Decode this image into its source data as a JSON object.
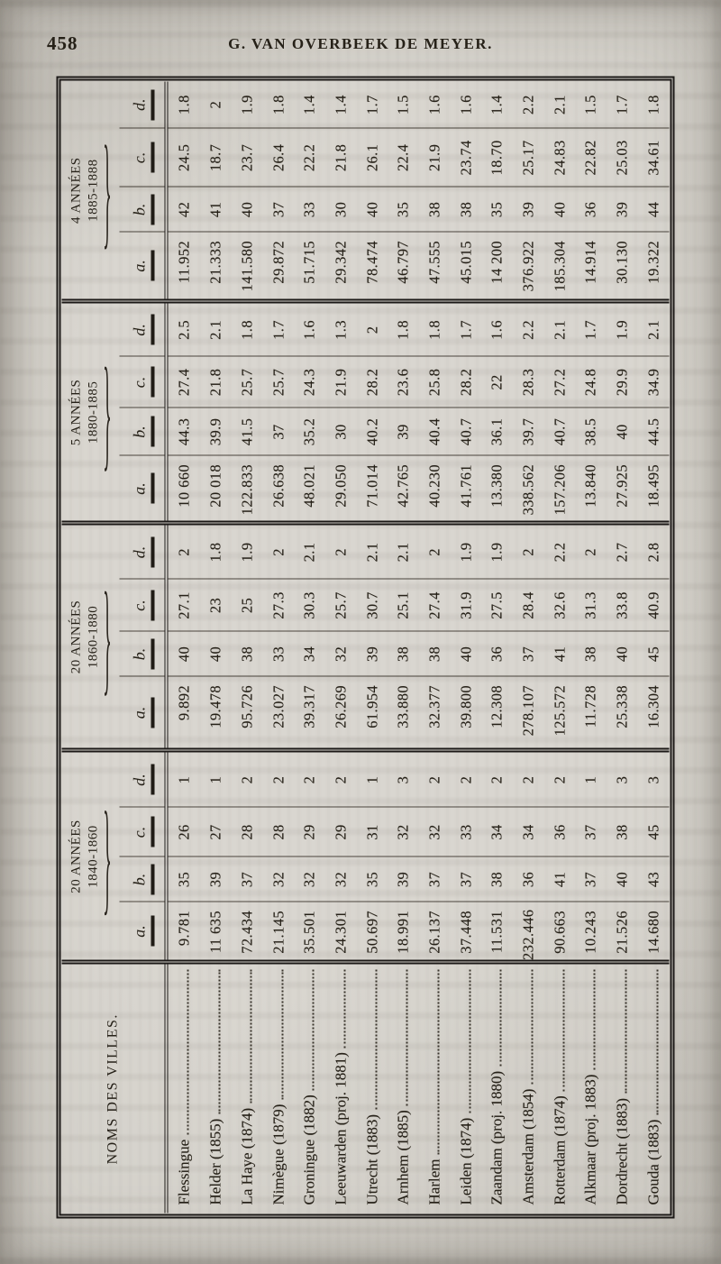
{
  "page": {
    "number": "458",
    "running_title": "G. VAN OVERBEEK DE MEYER."
  },
  "table": {
    "name_column_header": "NOMS DES VILLES.",
    "groups": [
      {
        "label_line1": "20 ANNÉES",
        "label_line2": "1840-1860",
        "subcols": [
          "a.",
          "b.",
          "c.",
          "d."
        ]
      },
      {
        "label_line1": "20 ANNÉES",
        "label_line2": "1860-1880",
        "subcols": [
          "a.",
          "b.",
          "c.",
          "d."
        ]
      },
      {
        "label_line1": "5 ANNÉES",
        "label_line2": "1880-1885",
        "subcols": [
          "a.",
          "b.",
          "c.",
          "d."
        ]
      },
      {
        "label_line1": "4 ANNÉES",
        "label_line2": "1885-1888",
        "subcols": [
          "a.",
          "b.",
          "c.",
          "d."
        ]
      }
    ],
    "rows": [
      {
        "city": "Flessingue",
        "values": [
          "9.781",
          "35",
          "26",
          "1",
          "9.892",
          "40",
          "27.1",
          "2",
          "10 660",
          "44.3",
          "27.4",
          "2.5",
          "11.952",
          "42",
          "24.5",
          "1.8"
        ]
      },
      {
        "city": "Helder (1855)",
        "values": [
          "11 635",
          "39",
          "27",
          "1",
          "19.478",
          "40",
          "23",
          "1.8",
          "20 018",
          "39.9",
          "21.8",
          "2.1",
          "21.333",
          "41",
          "18.7",
          "2"
        ]
      },
      {
        "city": "La Haye (1874)",
        "values": [
          "72.434",
          "37",
          "28",
          "2",
          "95.726",
          "38",
          "25",
          "1.9",
          "122.833",
          "41.5",
          "25.7",
          "1.8",
          "141.580",
          "40",
          "23.7",
          "1.9"
        ]
      },
      {
        "city": "Nimègue (1879)",
        "values": [
          "21.145",
          "32",
          "28",
          "2",
          "23.027",
          "33",
          "27.3",
          "2",
          "26.638",
          "37",
          "25.7",
          "1.7",
          "29.872",
          "37",
          "26.4",
          "1.8"
        ]
      },
      {
        "city": "Groningue (1882)",
        "values": [
          "35.501",
          "32",
          "29",
          "2",
          "39.317",
          "34",
          "30.3",
          "2.1",
          "48.021",
          "35.2",
          "24.3",
          "1.6",
          "51.715",
          "33",
          "22.2",
          "1.4"
        ]
      },
      {
        "city": "Leeuwarden (proj. 1881)",
        "values": [
          "24.301",
          "32",
          "29",
          "2",
          "26.269",
          "32",
          "25.7",
          "2",
          "29.050",
          "30",
          "21.9",
          "1.3",
          "29.342",
          "30",
          "21.8",
          "1.4"
        ]
      },
      {
        "city": "Utrecht (1883)",
        "values": [
          "50.697",
          "35",
          "31",
          "1",
          "61.954",
          "39",
          "30.7",
          "2.1",
          "71.014",
          "40.2",
          "28.2",
          "2",
          "78.474",
          "40",
          "26.1",
          "1.7"
        ]
      },
      {
        "city": "Arnhem (1885)",
        "values": [
          "18.991",
          "39",
          "32",
          "3",
          "33.880",
          "38",
          "25.1",
          "2.1",
          "42.765",
          "39",
          "23.6",
          "1.8",
          "46.797",
          "35",
          "22.4",
          "1.5"
        ]
      },
      {
        "city": "Harlem",
        "values": [
          "26.137",
          "37",
          "32",
          "2",
          "32.377",
          "38",
          "27.4",
          "2",
          "40.230",
          "40.4",
          "25.8",
          "1.8",
          "47.555",
          "38",
          "21.9",
          "1.6"
        ]
      },
      {
        "city": "Leiden (1874)",
        "values": [
          "37.448",
          "37",
          "33",
          "2",
          "39.800",
          "40",
          "31.9",
          "1.9",
          "41.761",
          "40.7",
          "28.2",
          "1.7",
          "45.015",
          "38",
          "23.74",
          "1.6"
        ]
      },
      {
        "city": "Zaandam (proj. 1880)",
        "values": [
          "11.531",
          "38",
          "34",
          "2",
          "12.308",
          "36",
          "27.5",
          "1.9",
          "13.380",
          "36.1",
          "22",
          "1.6",
          "14 200",
          "35",
          "18.70",
          "1.4"
        ]
      },
      {
        "city": "Amsterdam (1854)",
        "values": [
          "232.446",
          "36",
          "34",
          "2",
          "278.107",
          "37",
          "28.4",
          "2",
          "338.562",
          "39.7",
          "28.3",
          "2.2",
          "376.922",
          "39",
          "25.17",
          "2.2"
        ]
      },
      {
        "city": "Rotterdam (1874)",
        "values": [
          "90.663",
          "41",
          "36",
          "2",
          "125.572",
          "41",
          "32.6",
          "2.2",
          "157.206",
          "40.7",
          "27.2",
          "2.1",
          "185.304",
          "40",
          "24.83",
          "2.1"
        ]
      },
      {
        "city": "Alkmaar (proj. 1883)",
        "values": [
          "10.243",
          "37",
          "37",
          "1",
          "11.728",
          "38",
          "31.3",
          "2",
          "13.840",
          "38.5",
          "24.8",
          "1.7",
          "14.914",
          "36",
          "22.82",
          "1.5"
        ]
      },
      {
        "city": "Dordrecht (1883)",
        "values": [
          "21.526",
          "40",
          "38",
          "3",
          "25.338",
          "40",
          "33.8",
          "2.7",
          "27.925",
          "40",
          "29.9",
          "1.9",
          "30.130",
          "39",
          "25.03",
          "1.7"
        ]
      },
      {
        "city": "Gouda (1883)",
        "values": [
          "14.680",
          "43",
          "45",
          "3",
          "16.304",
          "45",
          "40.9",
          "2.8",
          "18.495",
          "44.5",
          "34.9",
          "2.1",
          "19.322",
          "44",
          "34.61",
          "1.8"
        ]
      }
    ]
  }
}
